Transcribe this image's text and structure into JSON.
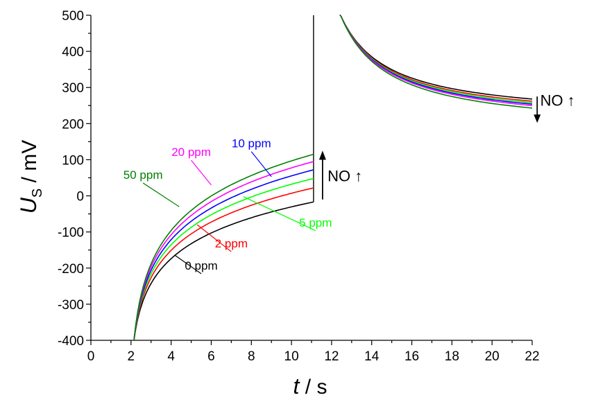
{
  "chart_data": {
    "type": "line",
    "xlabel": {
      "var": "t",
      "unit": " / s"
    },
    "ylabel": {
      "var": "U",
      "sub": "S",
      "unit": " / mV"
    },
    "xlim": [
      0,
      22
    ],
    "ylim": [
      -400,
      500
    ],
    "x_ticks": [
      "0",
      "2",
      "4",
      "6",
      "8",
      "10",
      "12",
      "14",
      "16",
      "18",
      "20",
      "22"
    ],
    "y_ticks": [
      "-400",
      "-300",
      "-200",
      "-100",
      "0",
      "100",
      "200",
      "300",
      "400",
      "500"
    ],
    "step_time": 11.1,
    "series": [
      {
        "name": "0 ppm",
        "color": "#000000",
        "charge_end": -17,
        "discharge_end": 268
      },
      {
        "name": "2 ppm",
        "color": "#ff0000",
        "charge_end": 22,
        "discharge_end": 262
      },
      {
        "name": "5 ppm",
        "color": "#00ff00",
        "charge_end": 48,
        "discharge_end": 258
      },
      {
        "name": "10 ppm",
        "color": "#0000ff",
        "charge_end": 72,
        "discharge_end": 254
      },
      {
        "name": "20 ppm",
        "color": "#ff00ff",
        "charge_end": 95,
        "discharge_end": 250
      },
      {
        "name": "50 ppm",
        "color": "#008000",
        "charge_end": 115,
        "discharge_end": 243
      }
    ],
    "label_points": [
      {
        "series": "0 ppm",
        "label_at": [
          5.5,
          -204
        ],
        "leader_to": [
          4.2,
          -165
        ]
      },
      {
        "series": "2 ppm",
        "label_at": [
          7.0,
          -143
        ],
        "leader_to": [
          5.3,
          -80
        ]
      },
      {
        "series": "5 ppm",
        "label_at": [
          11.2,
          -85
        ],
        "leader_to": [
          7.6,
          -2
        ]
      },
      {
        "series": "10 ppm",
        "label_at": [
          8.0,
          134
        ],
        "leader_to": [
          9.0,
          53
        ]
      },
      {
        "series": "20 ppm",
        "label_at": [
          5.0,
          110
        ],
        "leader_to": [
          6.0,
          30
        ]
      },
      {
        "series": "50 ppm",
        "label_at": [
          2.6,
          47
        ],
        "leader_to": [
          4.4,
          -30
        ]
      }
    ],
    "annotations": [
      {
        "text": "NO ↑",
        "at": [
          11.8,
          40
        ]
      },
      {
        "text": "NO ↑",
        "at": [
          22.4,
          250
        ]
      }
    ]
  }
}
